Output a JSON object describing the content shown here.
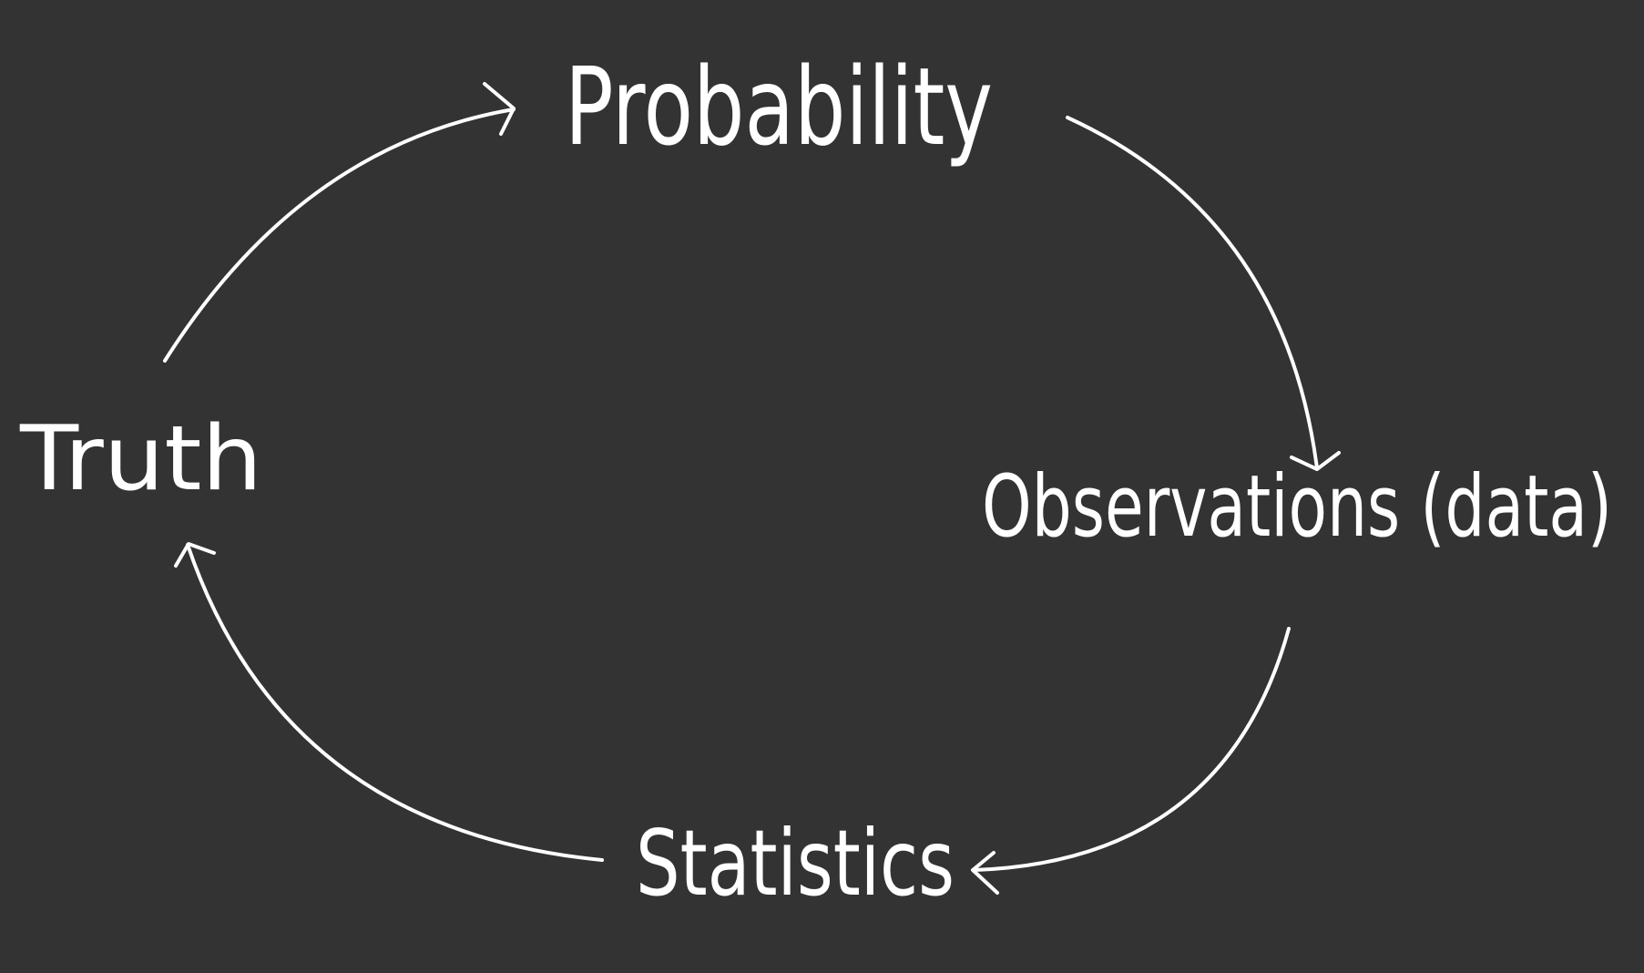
{
  "colors": {
    "background": "#333333",
    "ink": "#ffffff"
  },
  "nodes": {
    "probability": "Probability",
    "observations": "Observations (data)",
    "statistics": "Statistics",
    "truth": "Truth"
  },
  "edges": [
    {
      "from": "truth",
      "to": "probability"
    },
    {
      "from": "probability",
      "to": "observations"
    },
    {
      "from": "observations",
      "to": "statistics"
    },
    {
      "from": "statistics",
      "to": "truth"
    }
  ]
}
